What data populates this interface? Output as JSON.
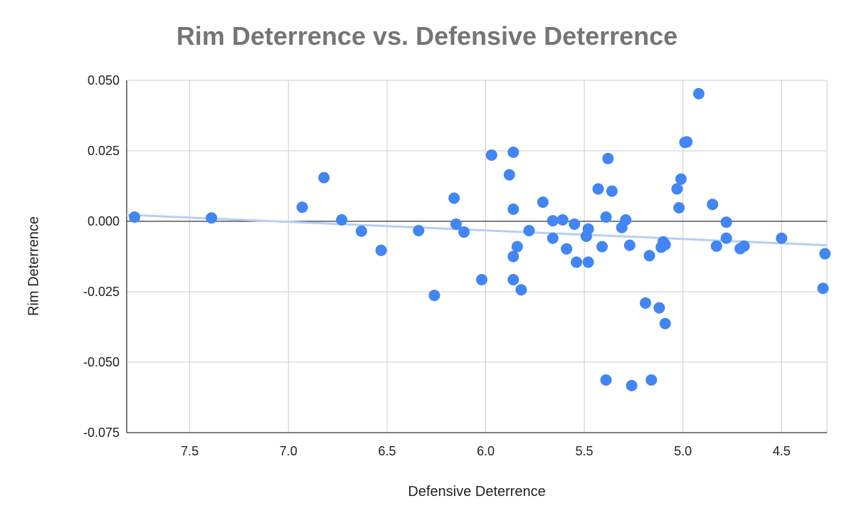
{
  "chart_data": {
    "type": "scatter",
    "title": "Rim Deterrence vs. Defensive Deterrence",
    "xlabel": "Defensive Deterrence",
    "ylabel": "Rim Deterrence",
    "x_reversed": true,
    "xlim": [
      7.82,
      4.27
    ],
    "ylim": [
      -0.075,
      0.05
    ],
    "x_ticks": [
      "7.5",
      "7.0",
      "6.5",
      "6.0",
      "5.5",
      "5.0",
      "4.5"
    ],
    "x_tick_values": [
      7.5,
      7.0,
      6.5,
      6.0,
      5.5,
      5.0,
      4.5
    ],
    "y_ticks": [
      "0.050",
      "0.025",
      "0.000",
      "-0.025",
      "-0.050",
      "-0.075"
    ],
    "y_tick_values": [
      0.05,
      0.025,
      0.0,
      -0.025,
      -0.05,
      -0.075
    ],
    "grid": true,
    "legend": "none",
    "colors": {
      "points": "#4285f4",
      "trendline": "#b7cff7",
      "grid": "#cccccc",
      "zero_line": "#333333"
    },
    "trendline": {
      "x": [
        7.82,
        4.27
      ],
      "y": [
        0.0023,
        -0.0085
      ]
    },
    "points": [
      {
        "x": 7.78,
        "y": 0.0015
      },
      {
        "x": 7.39,
        "y": 0.0012
      },
      {
        "x": 6.93,
        "y": 0.005
      },
      {
        "x": 6.82,
        "y": 0.0155
      },
      {
        "x": 6.73,
        "y": 0.0005
      },
      {
        "x": 6.63,
        "y": -0.0035
      },
      {
        "x": 6.53,
        "y": -0.0103
      },
      {
        "x": 6.34,
        "y": -0.0033
      },
      {
        "x": 6.26,
        "y": -0.0263
      },
      {
        "x": 6.16,
        "y": 0.0082
      },
      {
        "x": 6.15,
        "y": -0.001
      },
      {
        "x": 6.11,
        "y": -0.0038
      },
      {
        "x": 6.02,
        "y": -0.0207
      },
      {
        "x": 5.97,
        "y": 0.0235
      },
      {
        "x": 5.88,
        "y": 0.0165
      },
      {
        "x": 5.86,
        "y": 0.0245
      },
      {
        "x": 5.86,
        "y": 0.0043
      },
      {
        "x": 5.86,
        "y": -0.0125
      },
      {
        "x": 5.86,
        "y": -0.0207
      },
      {
        "x": 5.84,
        "y": -0.009
      },
      {
        "x": 5.82,
        "y": -0.0243
      },
      {
        "x": 5.78,
        "y": -0.0033
      },
      {
        "x": 5.71,
        "y": 0.0068
      },
      {
        "x": 5.66,
        "y": 0.0002
      },
      {
        "x": 5.66,
        "y": -0.006
      },
      {
        "x": 5.61,
        "y": 0.0005
      },
      {
        "x": 5.59,
        "y": -0.0098
      },
      {
        "x": 5.55,
        "y": -0.001
      },
      {
        "x": 5.54,
        "y": -0.0145
      },
      {
        "x": 5.49,
        "y": -0.0053
      },
      {
        "x": 5.48,
        "y": -0.0027
      },
      {
        "x": 5.48,
        "y": -0.0145
      },
      {
        "x": 5.43,
        "y": 0.0115
      },
      {
        "x": 5.41,
        "y": -0.009
      },
      {
        "x": 5.39,
        "y": 0.0015
      },
      {
        "x": 5.39,
        "y": -0.0563
      },
      {
        "x": 5.38,
        "y": 0.0223
      },
      {
        "x": 5.36,
        "y": 0.0107
      },
      {
        "x": 5.31,
        "y": -0.0022
      },
      {
        "x": 5.29,
        "y": 0.0005
      },
      {
        "x": 5.27,
        "y": -0.0085
      },
      {
        "x": 5.26,
        "y": -0.0583
      },
      {
        "x": 5.19,
        "y": -0.029
      },
      {
        "x": 5.17,
        "y": -0.0122
      },
      {
        "x": 5.16,
        "y": -0.0563
      },
      {
        "x": 5.12,
        "y": -0.0307
      },
      {
        "x": 5.11,
        "y": -0.0092
      },
      {
        "x": 5.1,
        "y": -0.0073
      },
      {
        "x": 5.09,
        "y": -0.0083
      },
      {
        "x": 5.09,
        "y": -0.0363
      },
      {
        "x": 5.03,
        "y": 0.0115
      },
      {
        "x": 5.01,
        "y": 0.015
      },
      {
        "x": 5.02,
        "y": 0.0048
      },
      {
        "x": 4.99,
        "y": 0.028
      },
      {
        "x": 4.98,
        "y": 0.0282
      },
      {
        "x": 4.92,
        "y": 0.0453
      },
      {
        "x": 4.85,
        "y": 0.006
      },
      {
        "x": 4.83,
        "y": -0.0088
      },
      {
        "x": 4.78,
        "y": -0.0003
      },
      {
        "x": 4.78,
        "y": -0.006
      },
      {
        "x": 4.71,
        "y": -0.0097
      },
      {
        "x": 4.69,
        "y": -0.0088
      },
      {
        "x": 4.5,
        "y": -0.006
      },
      {
        "x": 4.29,
        "y": -0.0238
      },
      {
        "x": 4.28,
        "y": -0.0115
      }
    ]
  }
}
